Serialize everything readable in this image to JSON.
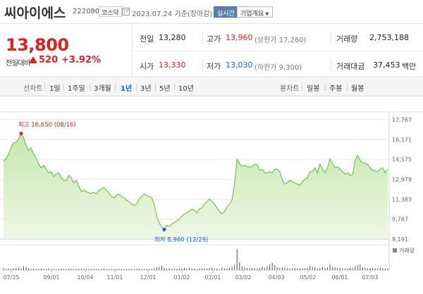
{
  "header": {
    "stock_name": "씨아이에스",
    "stock_code": "222080",
    "market": "코스닥",
    "date_info": "2023.07.24  기준(장마감)",
    "realtime_button": "실시간",
    "company_button": "기업개요"
  },
  "price": {
    "current": "13,800",
    "change_label": "전일대비",
    "change_value": "520",
    "change_pct": "+3.92%",
    "direction": "up"
  },
  "stats": {
    "prev_close": {
      "label": "전일",
      "value": "13,280"
    },
    "high": {
      "label": "고가",
      "value": "13,960",
      "sub": "(상한가 17,260)"
    },
    "volume": {
      "label": "거래량",
      "value": "2,753,188"
    },
    "open": {
      "label": "시가",
      "value": "13,330"
    },
    "low": {
      "label": "저가",
      "value": "13,030",
      "sub": "(하한가 9,300)"
    },
    "amount": {
      "label": "거래대금",
      "value": "37,453",
      "unit": "백만"
    }
  },
  "period_bar": {
    "line_label": "선차트",
    "periods": [
      "1일",
      "1주일",
      "3개월",
      "1년",
      "3년",
      "5년",
      "10년"
    ],
    "active_period": "1년",
    "candle_label": "봉차트",
    "candles": [
      "일봉",
      "주봉",
      "월봉"
    ]
  },
  "chart_data": {
    "type": "area",
    "y_ticks": [
      "17,767",
      "16,171",
      "14,575",
      "12,979",
      "11,383",
      "9,787",
      "8,191"
    ],
    "ylim": [
      8191,
      17767
    ],
    "x_ticks": [
      "07/25",
      "09/01",
      "10/04",
      "11/01",
      "12/01",
      "01/02",
      "02/01",
      "03/02",
      "04/03",
      "05/02",
      "06/01",
      "07/03"
    ],
    "volume_label": "거래량",
    "annotations": {
      "high": {
        "text": "최고  16,650 (08/16)",
        "value": 16650,
        "date": "08/16"
      },
      "low": {
        "text": "최저  8,960 (12/29)",
        "value": 8960,
        "date": "12/29"
      }
    },
    "series": [
      {
        "values": [
          14450,
          14650,
          15000,
          15500,
          15900,
          15950,
          16200,
          16650,
          16300,
          15700,
          15300,
          15500,
          15000,
          14700,
          14200,
          13900,
          14100,
          13800,
          13500,
          13600,
          13200,
          13400,
          13500,
          13100,
          12900,
          12900,
          13300,
          13100,
          12700,
          12900,
          12400,
          12000,
          12100,
          12000,
          11900,
          11850,
          11950,
          11800,
          12100,
          12200,
          12350,
          12100,
          11900,
          11600,
          11500,
          11700,
          11800,
          11600,
          11500,
          11300,
          11200,
          11000,
          10900,
          11000,
          11400,
          11600,
          11800,
          11700,
          11600,
          11500,
          11000,
          10000,
          9500,
          9150,
          8960,
          9300,
          9200,
          9400,
          9500,
          9650,
          9800,
          10000,
          10200,
          10300,
          10450,
          10600,
          10500,
          10300,
          10600,
          10700,
          11000,
          11200,
          11400,
          11200,
          11000,
          10700,
          10400,
          10200,
          10400,
          10750,
          11000,
          11350,
          12600,
          14600,
          14200,
          14050,
          14100,
          14000,
          13950,
          14000,
          14200,
          14150,
          13700,
          13800,
          13500,
          13500,
          13600,
          13500,
          13800,
          13800,
          13600,
          12950,
          12600,
          12700,
          12900,
          12800,
          12700,
          12600,
          12500,
          12800,
          13000,
          13100,
          13600,
          13600,
          13900,
          13500,
          14200,
          13800,
          13500,
          13900,
          14600,
          14250,
          13900,
          14000,
          13800,
          13600,
          13400,
          13500,
          13300,
          13350,
          14500,
          14900,
          14500,
          14300,
          14300,
          14150,
          13900,
          13700,
          13650,
          13600,
          13800,
          13900,
          13500,
          13800
        ]
      }
    ],
    "volume": [
      4,
      2,
      3,
      2,
      3,
      4,
      5,
      3,
      7,
      5,
      3,
      2,
      3,
      2,
      2,
      3,
      2,
      2,
      3,
      2,
      2,
      2,
      2,
      3,
      2,
      2,
      3,
      2,
      2,
      2,
      2,
      2,
      2,
      2,
      2,
      2,
      2,
      2,
      2,
      2,
      3,
      2,
      2,
      2,
      2,
      2,
      2,
      2,
      2,
      2,
      2,
      2,
      2,
      2,
      3,
      2,
      2,
      2,
      2,
      2,
      3,
      5,
      6,
      8,
      4,
      3,
      3,
      2,
      3,
      2,
      3,
      3,
      4,
      3,
      4,
      3,
      3,
      2,
      3,
      3,
      3,
      3,
      4,
      5,
      3,
      3,
      2,
      4,
      3,
      3,
      4,
      6,
      10,
      38,
      14,
      7,
      5,
      4,
      4,
      4,
      4,
      3,
      4,
      6,
      4,
      7,
      10,
      13,
      9,
      5,
      4,
      5,
      4,
      3,
      3,
      3,
      4,
      3,
      3,
      3,
      3,
      4,
      8,
      6,
      5,
      3,
      4,
      6,
      4,
      5,
      11,
      6,
      5,
      4,
      4,
      3,
      3,
      3,
      4,
      4,
      7,
      9,
      10,
      5,
      4,
      3,
      3,
      4,
      3,
      3,
      4,
      3,
      3,
      3
    ],
    "colors": {
      "line": "#66c245",
      "fill_top": "#c4e7ac",
      "fill_bottom": "#eef8e6",
      "high": "#e02020",
      "low": "#1c5fd6",
      "volume": "#555555"
    }
  }
}
